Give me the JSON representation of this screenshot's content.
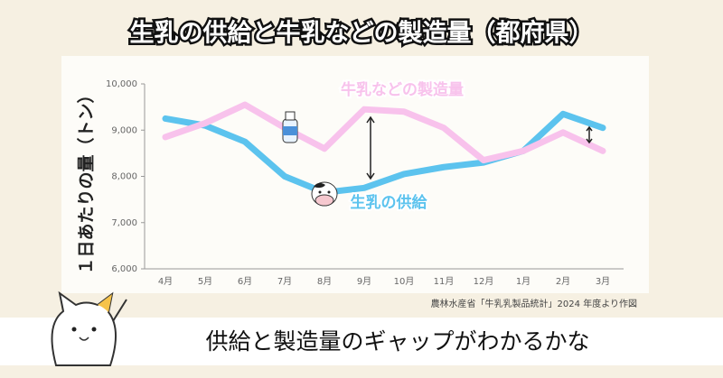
{
  "chart_data": {
    "type": "line",
    "title": "生乳の供給と牛乳などの製造量（都府県）",
    "y_label": "１日あたりの量（トン）",
    "categories": [
      "4月",
      "5月",
      "6月",
      "7月",
      "8月",
      "9月",
      "10月",
      "11月",
      "12月",
      "1月",
      "2月",
      "3月"
    ],
    "series": [
      {
        "name": "生乳の供給",
        "color": "#5cc3ee",
        "values": [
          9250,
          9100,
          8750,
          8000,
          7650,
          7750,
          8050,
          8200,
          8300,
          8550,
          9350,
          9050
        ]
      },
      {
        "name": "牛乳などの製造量",
        "color": "#f8c2ec",
        "values": [
          8850,
          9150,
          9550,
          9050,
          8600,
          9450,
          9400,
          9050,
          8350,
          8550,
          8950,
          8550
        ]
      }
    ],
    "ylim": [
      6000,
      10000
    ],
    "yticks": [
      {
        "value": 6000,
        "label": "6,000"
      },
      {
        "value": 7000,
        "label": "7,000"
      },
      {
        "value": 8000,
        "label": "8,000"
      },
      {
        "value": 9000,
        "label": "9,000"
      },
      {
        "value": 10000,
        "label": "10,000"
      }
    ],
    "grid": false,
    "source": "農林水産省「牛乳乳製品統計」2024 年度より作図",
    "caption": "供給と製造量のギャップがわかるかな"
  }
}
